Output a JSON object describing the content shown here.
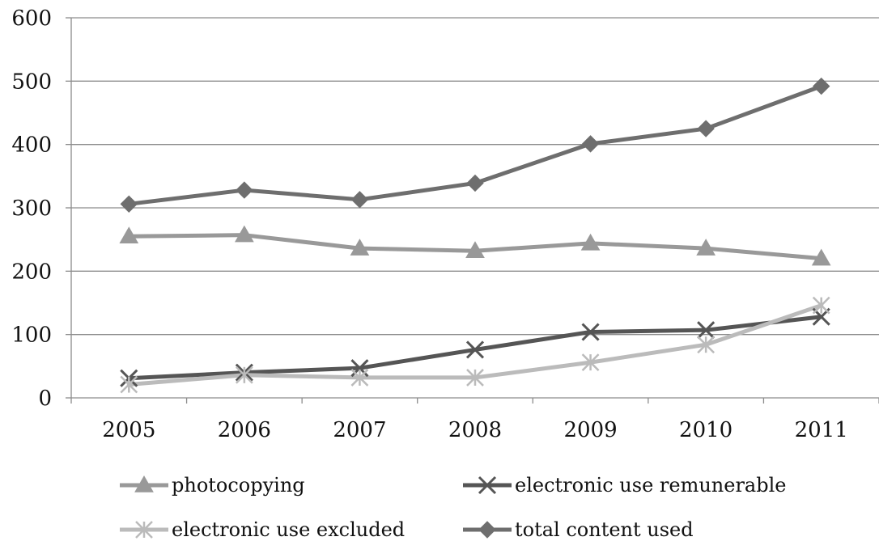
{
  "chart_data": {
    "type": "line",
    "title": "",
    "xlabel": "",
    "ylabel": "",
    "categories": [
      "2005",
      "2006",
      "2007",
      "2008",
      "2009",
      "2010",
      "2011"
    ],
    "ylim": [
      0,
      600
    ],
    "yticks": [
      0,
      100,
      200,
      300,
      400,
      500,
      600
    ],
    "grid": "horizontal",
    "legend_position": "bottom",
    "series": [
      {
        "name": "photocopying",
        "marker": "triangle",
        "color": "#999999",
        "values": [
          255,
          257,
          236,
          232,
          244,
          236,
          220
        ]
      },
      {
        "name": "electronic use remunerable",
        "marker": "x",
        "color": "#555555",
        "values": [
          31,
          40,
          47,
          76,
          104,
          107,
          128
        ]
      },
      {
        "name": "electronic use excluded",
        "marker": "star",
        "color": "#bbbbbb",
        "values": [
          21,
          36,
          32,
          32,
          56,
          84,
          146
        ]
      },
      {
        "name": "total content used",
        "marker": "diamond",
        "color": "#6e6e6e",
        "values": [
          306,
          328,
          313,
          339,
          401,
          425,
          492
        ]
      }
    ]
  }
}
